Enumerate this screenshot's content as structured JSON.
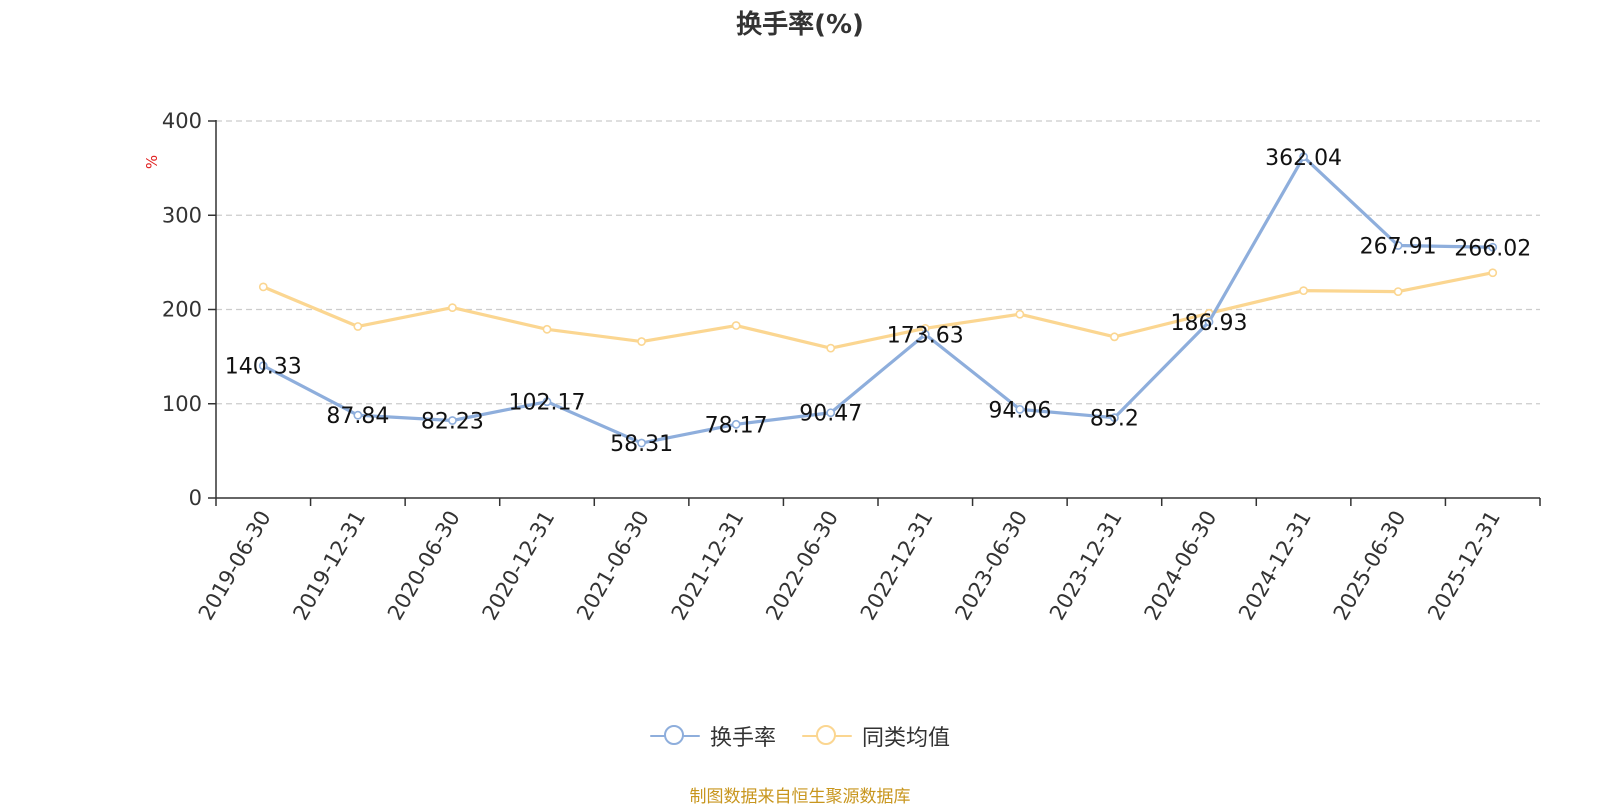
{
  "chart_data": {
    "type": "line",
    "title": "换手率(%)",
    "ylabel": "%",
    "xlabel": "",
    "ylim": [
      0,
      400
    ],
    "y_ticks": [
      0,
      100,
      200,
      300,
      400
    ],
    "grid": true,
    "legend_position": "bottom",
    "categories": [
      "2019-06-30",
      "2019-12-31",
      "2020-06-30",
      "2020-12-31",
      "2021-06-30",
      "2021-12-31",
      "2022-06-30",
      "2022-12-31",
      "2023-06-30",
      "2023-12-31",
      "2024-06-30",
      "2024-12-31",
      "2025-06-30",
      "2025-12-31"
    ],
    "series": [
      {
        "name": "换手率",
        "color": "#8eaedc",
        "values": [
          140.33,
          87.84,
          82.23,
          102.17,
          58.31,
          78.17,
          90.47,
          173.63,
          94.06,
          85.2,
          186.93,
          362.04,
          267.91,
          266.02
        ],
        "data_labels": [
          "140.33",
          "87.84",
          "82.23",
          "102.17",
          "58.31",
          "78.17",
          "90.47",
          "173.63",
          "94.06",
          "85.2",
          "186.93",
          "362.04",
          "267.91",
          "266.02"
        ]
      },
      {
        "name": "同类均值",
        "color": "#fbd691",
        "values": [
          224,
          182,
          202,
          179,
          166,
          183,
          159,
          180,
          195,
          171,
          196,
          220,
          219,
          239
        ]
      }
    ]
  },
  "colors": {
    "title": "#333333",
    "axis": "#333333",
    "grid": "#cccccc",
    "unit_label": "#e02020",
    "source_note": "#c8961e"
  },
  "source_note": "制图数据来自恒生聚源数据库"
}
